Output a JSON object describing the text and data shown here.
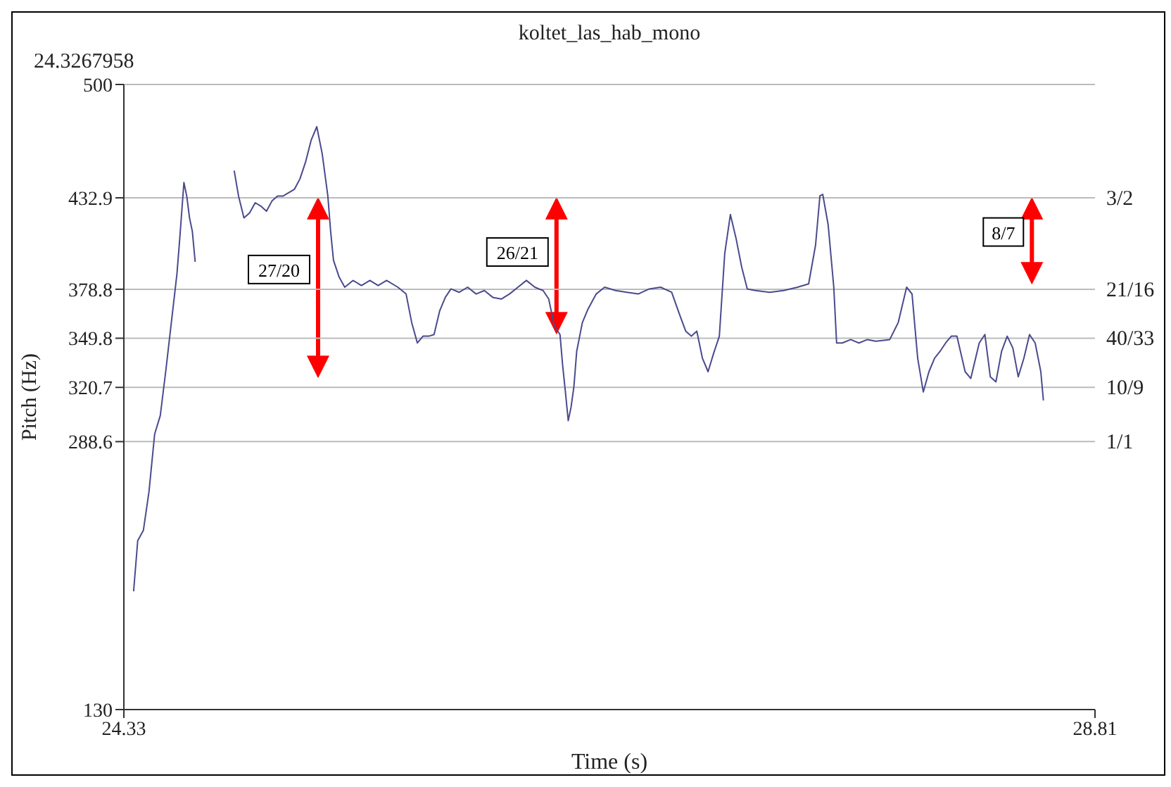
{
  "chart_data": {
    "type": "line",
    "title": "koltet_las_hab_mono",
    "xlabel": "Time (s)",
    "ylabel": "Pitch (Hz)",
    "annotations": [
      "24.3267958",
      "27/20",
      "26/21",
      "8/7",
      "3/2",
      "21/16",
      "40/33",
      "10/9",
      "1/1"
    ],
    "series": [
      {
        "color": "#4a4a8e",
        "x": [
          24.375,
          24.394,
          24.42,
          24.446,
          24.472,
          24.498,
          24.523,
          24.549,
          24.575,
          24.588,
          24.607,
          24.62,
          24.633,
          24.646,
          24.659,
          24.75,
          24.839,
          24.859,
          24.884,
          24.91,
          24.936,
          24.962,
          24.988,
          25.013,
          25.039,
          25.065,
          25.091,
          25.117,
          25.142,
          25.168,
          25.194,
          25.22,
          25.245,
          25.271,
          25.284,
          25.297,
          25.323,
          25.349,
          25.387,
          25.426,
          25.465,
          25.503,
          25.542,
          25.594,
          25.632,
          25.658,
          25.684,
          25.71,
          25.736,
          25.761,
          25.787,
          25.813,
          25.839,
          25.877,
          25.916,
          25.955,
          25.993,
          26.032,
          26.071,
          26.109,
          26.148,
          26.187,
          26.226,
          26.264,
          26.29,
          26.316,
          26.342,
          26.354,
          26.367,
          26.38,
          26.393,
          26.406,
          26.419,
          26.445,
          26.471,
          26.509,
          26.548,
          26.599,
          26.651,
          26.703,
          26.754,
          26.806,
          26.857,
          26.896,
          26.922,
          26.948,
          26.973,
          26.999,
          27.025,
          27.051,
          27.077,
          27.102,
          27.128,
          27.154,
          27.18,
          27.206,
          27.244,
          27.309,
          27.373,
          27.438,
          27.489,
          27.521,
          27.541,
          27.554,
          27.579,
          27.605,
          27.618,
          27.644,
          27.683,
          27.721,
          27.76,
          27.799,
          27.863,
          27.902,
          27.941,
          27.966,
          27.992,
          28.018,
          28.044,
          28.07,
          28.095,
          28.121,
          28.147,
          28.173,
          28.211,
          28.237,
          28.276,
          28.302,
          28.327,
          28.353,
          28.379,
          28.405,
          28.431,
          28.456,
          28.482,
          28.508,
          28.534,
          28.56,
          28.572
        ],
        "values": [
          200,
          230,
          236,
          259,
          293,
          304,
          330,
          359,
          388,
          409,
          442,
          434,
          421,
          413,
          395,
          null,
          449,
          434,
          421,
          424,
          430,
          428,
          425,
          431,
          434,
          434,
          436,
          438,
          444,
          454,
          467,
          475,
          459,
          434,
          413,
          396,
          386,
          380,
          384,
          381,
          384,
          381,
          384,
          380,
          376,
          359,
          347,
          351,
          351,
          352,
          366,
          374,
          379,
          377,
          380,
          376,
          378,
          374,
          373,
          376,
          380,
          384,
          380,
          378,
          373,
          357,
          352,
          334,
          318,
          301,
          309,
          321,
          342,
          359,
          367,
          376,
          380,
          378,
          377,
          376,
          379,
          380,
          377,
          363,
          354,
          351,
          354,
          338,
          330,
          341,
          351,
          400,
          423,
          409,
          392,
          379,
          378,
          377,
          378,
          380,
          382,
          405,
          434,
          435,
          417,
          380,
          347,
          347,
          349,
          347,
          349,
          348,
          349,
          359,
          380,
          376,
          338,
          318,
          330,
          338,
          342,
          347,
          351,
          351,
          330,
          326,
          347,
          352,
          327,
          324,
          342,
          351,
          344,
          327,
          338,
          352,
          347,
          330,
          313
        ]
      }
    ],
    "xlim": [
      24.33,
      28.81
    ],
    "xticks": [
      24.33,
      28.81
    ],
    "ylim": [
      130,
      500
    ],
    "yticks": [
      130,
      288.6,
      320.7,
      349.8,
      378.8,
      432.9,
      500
    ],
    "grid": "y",
    "legend": false,
    "marker": "none",
    "line_style": "solid"
  }
}
